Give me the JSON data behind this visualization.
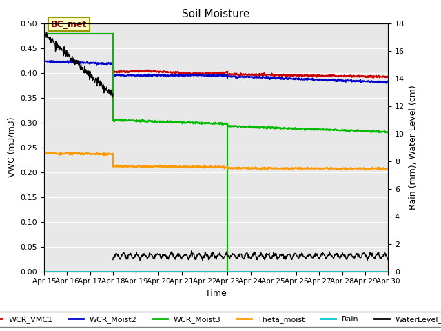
{
  "title": "Soil Moisture",
  "xlabel": "Time",
  "ylabel_left": "VWC (m3/m3)",
  "ylabel_right": "Rain (mm), Water Level (cm)",
  "xlim": [
    0,
    15
  ],
  "ylim_left": [
    0.0,
    0.5
  ],
  "ylim_right": [
    0,
    18
  ],
  "xtick_labels": [
    "Apr 15",
    "Apr 16",
    "Apr 17",
    "Apr 18",
    "Apr 19",
    "Apr 20",
    "Apr 21",
    "Apr 22",
    "Apr 23",
    "Apr 24",
    "Apr 25",
    "Apr 26",
    "Apr 27",
    "Apr 28",
    "Apr 29",
    "Apr 30"
  ],
  "ytick_left": [
    0.0,
    0.05,
    0.1,
    0.15,
    0.2,
    0.25,
    0.3,
    0.35,
    0.4,
    0.45,
    0.5
  ],
  "ytick_right": [
    0,
    2,
    4,
    6,
    8,
    10,
    12,
    14,
    16,
    18
  ],
  "annotation_text": "BC_met",
  "background_color": "#e8e8e8",
  "colors": {
    "WCR_VMC1": "#cc0000",
    "WCR_Moist2": "#0000cc",
    "WCR_Moist3": "#00bb00",
    "Theta_moist": "#ff9900",
    "Rain": "#00cccc",
    "WaterLevel_cm": "#000000"
  }
}
